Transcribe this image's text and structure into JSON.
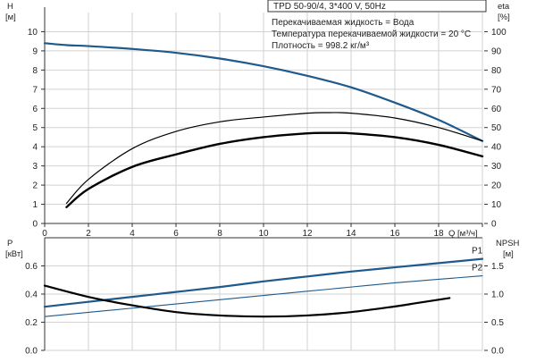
{
  "header": {
    "model": "TPD 50-90/4, 3*400 V, 50Hz",
    "info": [
      "Перекачиваемая жидкость = Вода",
      "Температура перекачиваемой жидкости = 20 °C",
      "Плотность = 998.2 кг/м³"
    ]
  },
  "colors": {
    "blue": "#1f5a8c",
    "black": "#000000",
    "grid": "#d2d2d2"
  },
  "chart_data": [
    {
      "type": "line",
      "name": "head-efficiency",
      "xlabel": "Q [м³/ч]",
      "xlim": [
        0,
        20
      ],
      "x_ticks": [
        0,
        2,
        4,
        6,
        8,
        10,
        12,
        14,
        16,
        18,
        20
      ],
      "x_tick_labels": [
        "0",
        "2",
        "4",
        "6",
        "8",
        "10",
        "12",
        "14",
        "16",
        "18",
        ""
      ],
      "ylabel_left": [
        "H",
        "[м]"
      ],
      "ylim_left": [
        0,
        11
      ],
      "y_left_ticks": [
        0,
        1,
        2,
        3,
        4,
        5,
        6,
        7,
        8,
        9,
        10
      ],
      "ylabel_right": [
        "eta",
        "[%]"
      ],
      "ylim_right": [
        0,
        110
      ],
      "y_right_ticks": [
        0,
        10,
        20,
        30,
        40,
        50,
        60,
        70,
        80,
        90,
        100
      ],
      "grid": true,
      "series": [
        {
          "axis": "left",
          "color": "#1f5a8c",
          "width": 2.2,
          "x": [
            0,
            1,
            2,
            4,
            6,
            8,
            10,
            12,
            14,
            16,
            18,
            20
          ],
          "y": [
            9.4,
            9.3,
            9.25,
            9.1,
            8.9,
            8.6,
            8.2,
            7.7,
            7.1,
            6.3,
            5.4,
            4.3
          ]
        },
        {
          "axis": "left",
          "color": "#000000",
          "width": 1.2,
          "x": [
            1,
            2,
            4,
            6,
            8,
            10,
            12,
            13,
            14,
            16,
            18,
            20
          ],
          "y": [
            1.05,
            2.3,
            3.9,
            4.8,
            5.3,
            5.55,
            5.75,
            5.78,
            5.75,
            5.5,
            5.0,
            4.3
          ]
        },
        {
          "axis": "left",
          "color": "#000000",
          "width": 2.4,
          "x": [
            1,
            2,
            4,
            6,
            8,
            10,
            12,
            13,
            14,
            16,
            18,
            20
          ],
          "y": [
            0.85,
            1.8,
            2.95,
            3.6,
            4.15,
            4.5,
            4.7,
            4.72,
            4.7,
            4.5,
            4.1,
            3.5
          ]
        }
      ]
    },
    {
      "type": "line",
      "name": "power-npsh",
      "xlim": [
        0,
        20
      ],
      "x_ticks": [
        0,
        2,
        4,
        6,
        8,
        10,
        12,
        14,
        16,
        18,
        20
      ],
      "ylabel_left": [
        "P",
        "[кВт]"
      ],
      "ylim_left": [
        0,
        0.8
      ],
      "y_left_ticks": [
        0,
        0.2,
        0.4,
        0.6
      ],
      "y_left_tick_labels": [
        "0.0",
        "0.2",
        "0.4",
        "0.6"
      ],
      "ylabel_right": [
        "NPSH",
        "[м]"
      ],
      "ylim_right": [
        0,
        2.0
      ],
      "y_right_ticks": [
        0,
        0.5,
        1.0,
        1.5
      ],
      "y_right_tick_labels": [
        "0.0",
        "0.5",
        "1.0",
        "1.5"
      ],
      "grid": true,
      "series": [
        {
          "name": "P1",
          "axis": "left",
          "color": "#1f5a8c",
          "width": 2.2,
          "x": [
            0,
            2,
            4,
            6,
            8,
            10,
            12,
            14,
            16,
            18,
            20
          ],
          "y": [
            0.31,
            0.345,
            0.38,
            0.415,
            0.45,
            0.49,
            0.525,
            0.56,
            0.59,
            0.62,
            0.65
          ]
        },
        {
          "name": "P2",
          "axis": "left",
          "color": "#1f5a8c",
          "width": 1.1,
          "x": [
            0,
            2,
            4,
            6,
            8,
            10,
            12,
            14,
            16,
            18,
            20
          ],
          "y": [
            0.24,
            0.27,
            0.3,
            0.33,
            0.36,
            0.39,
            0.42,
            0.45,
            0.48,
            0.505,
            0.53
          ]
        },
        {
          "axis": "right",
          "color": "#000000",
          "width": 2.2,
          "x": [
            0,
            2,
            4,
            6,
            8,
            10,
            12,
            14,
            16,
            17,
            18.5
          ],
          "y": [
            1.15,
            0.95,
            0.8,
            0.68,
            0.62,
            0.6,
            0.62,
            0.68,
            0.78,
            0.84,
            0.93
          ]
        }
      ]
    }
  ]
}
